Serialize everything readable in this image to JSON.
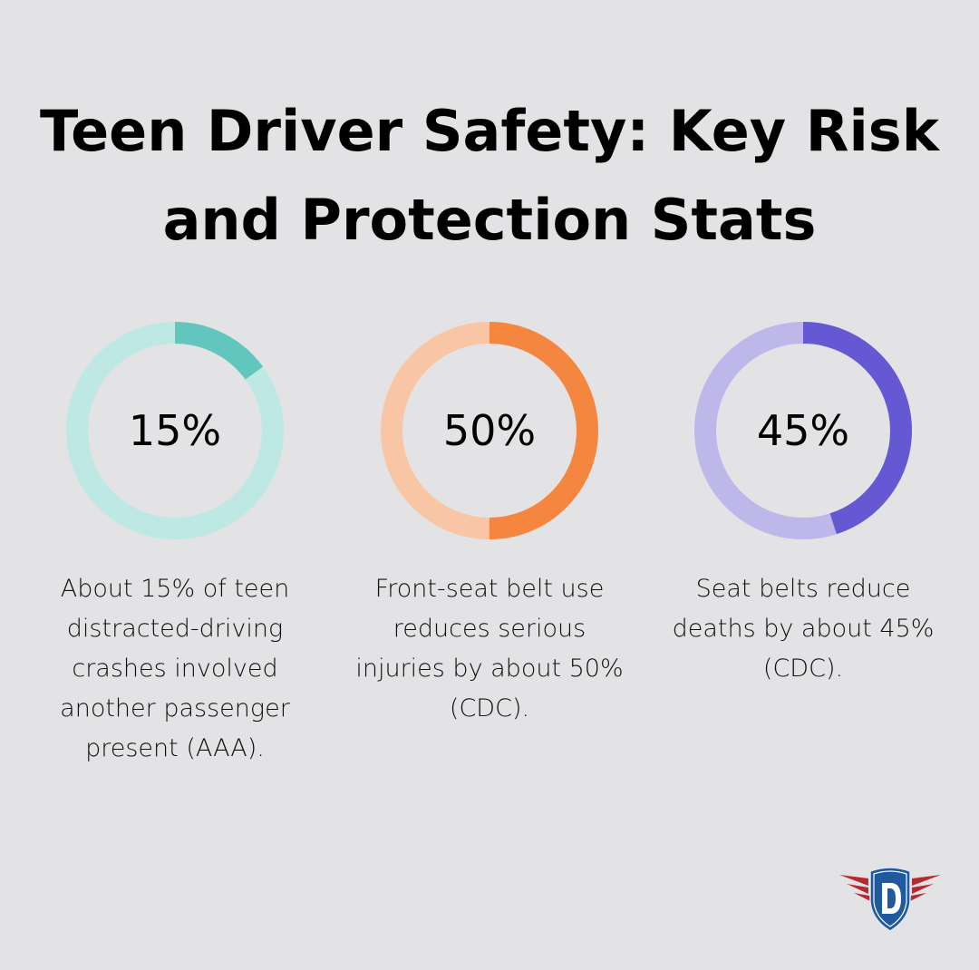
{
  "title": "Teen Driver Safety: Key Risk and Protection Stats",
  "chart_data": [
    {
      "type": "pie",
      "variant": "donut",
      "value": 15,
      "label": "15%",
      "description": "About 15% of teen distracted-driving crashes involved another passenger present (AAA).",
      "color": "#62c6bf",
      "track_color": "#bde8e4"
    },
    {
      "type": "pie",
      "variant": "donut",
      "value": 50,
      "label": "50%",
      "description": "Front-seat belt use reduces serious injuries by about 50% (CDC).",
      "color": "#f5863f",
      "track_color": "#f8c6a4"
    },
    {
      "type": "pie",
      "variant": "donut",
      "value": 45,
      "label": "45%",
      "description": "Seat belts reduce deaths by about 45% (CDC).",
      "color": "#6459d2",
      "track_color": "#bdb8e9"
    }
  ],
  "logo": {
    "letter": "D",
    "colors": {
      "shield": "#1f5a9e",
      "wings": "#b52a2f"
    }
  }
}
